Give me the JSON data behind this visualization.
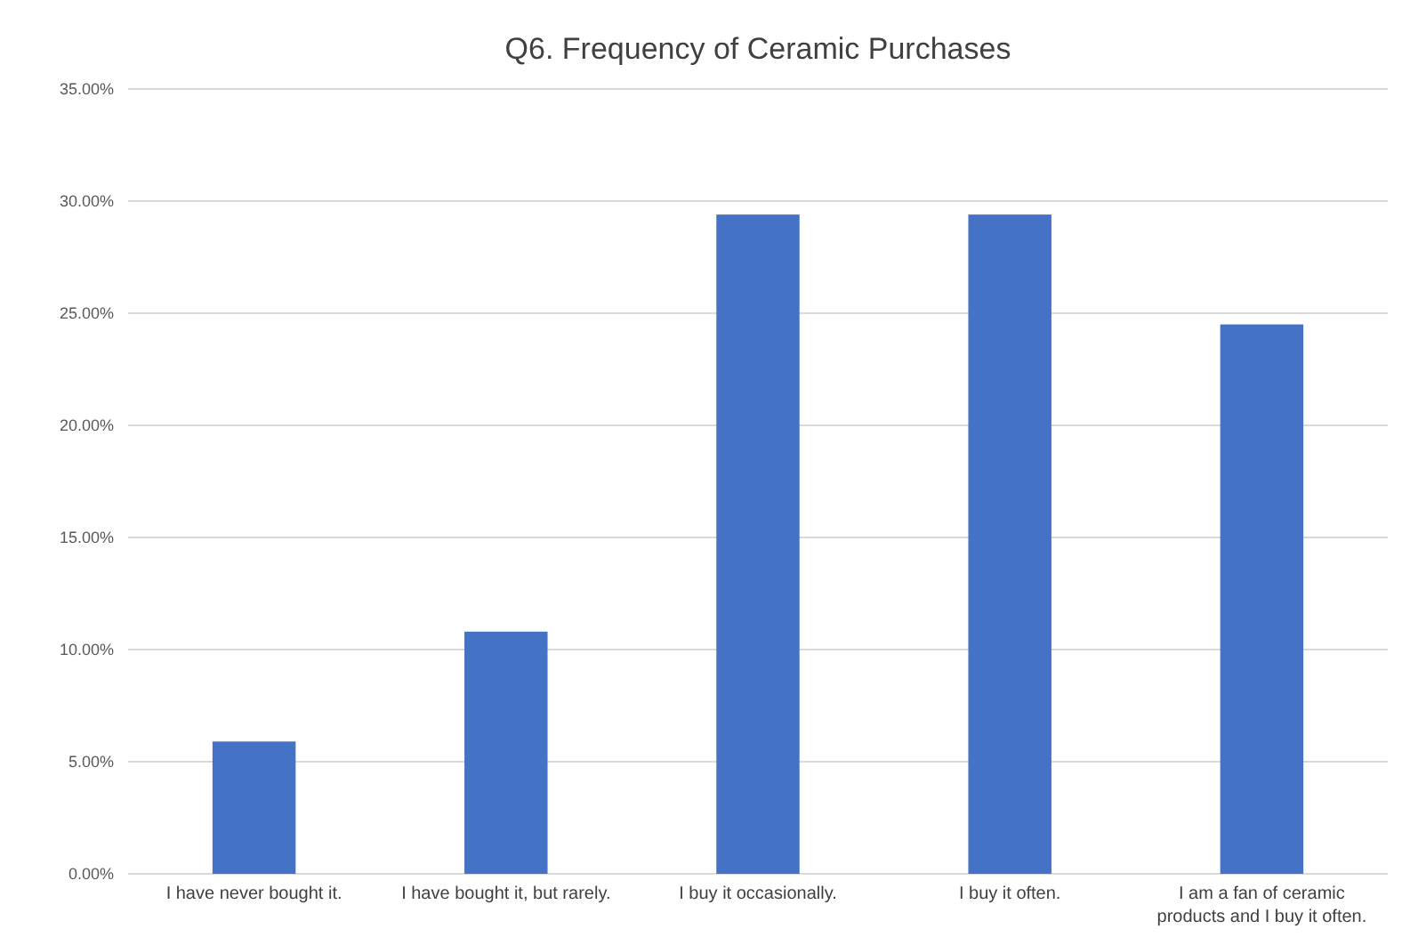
{
  "chart_data": {
    "type": "bar",
    "title": "Q6. Frequency of Ceramic Purchases",
    "categories": [
      "I have never bought it.",
      "I have bought it, but rarely.",
      "I buy it occasionally.",
      "I buy it often.",
      "I am a fan of ceramic products and I buy it often."
    ],
    "values": [
      5.9,
      10.8,
      29.4,
      29.4,
      24.5
    ],
    "color": "#4472c4",
    "ylim": [
      0,
      35
    ],
    "yticks": [
      {
        "value": 0,
        "label": "0.00%"
      },
      {
        "value": 5,
        "label": "5.00%"
      },
      {
        "value": 10,
        "label": "10.00%"
      },
      {
        "value": 15,
        "label": "15.00%"
      },
      {
        "value": 20,
        "label": "20.00%"
      },
      {
        "value": 25,
        "label": "25.00%"
      },
      {
        "value": 30,
        "label": "30.00%"
      },
      {
        "value": 35,
        "label": "35.00%"
      }
    ],
    "grid": "y"
  }
}
